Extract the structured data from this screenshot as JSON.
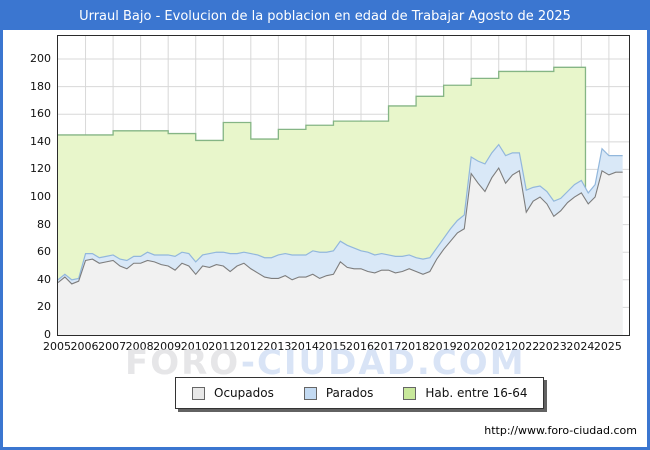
{
  "frame": {
    "title": "Urraul Bajo - Evolucion de la poblacion en edad de Trabajar Agosto de 2025",
    "title_bar_color": "#3b76d0",
    "border_color": "#3b76d0",
    "footer_url": "http://www.foro-ciudad.com",
    "watermark_part1": "FORO",
    "watermark_part2": "-CIUDAD.COM"
  },
  "legend": {
    "items": [
      {
        "label": "Ocupados",
        "swatch_color": "#e8e8e8"
      },
      {
        "label": "Parados",
        "swatch_color": "#c3daf2"
      },
      {
        "label": "Hab. entre 16-64",
        "swatch_color": "#c8e89b"
      }
    ]
  },
  "chart_data": {
    "type": "area",
    "title": "Urraul Bajo - Evolucion de la poblacion en edad de Trabajar Agosto de 2025",
    "xlabel": "",
    "ylabel": "",
    "grid": true,
    "legend_position": "bottom-center",
    "x_ticks": [
      2005,
      2006,
      2007,
      2008,
      2009,
      2010,
      2011,
      2012,
      2013,
      2014,
      2015,
      2016,
      2017,
      2018,
      2019,
      2020,
      2021,
      2022,
      2023,
      2024,
      2025
    ],
    "y_ticks": [
      0,
      20,
      40,
      60,
      80,
      100,
      120,
      140,
      160,
      180,
      200
    ],
    "x_range": [
      2005,
      2025.73
    ],
    "y_range": [
      0,
      216.7
    ],
    "stacking_note": "Parados is drawn stacked on top of Ocupados; Hab. entre 16-64 is a background area with annual step values ending early 2024",
    "series": [
      {
        "name": "Hab. entre 16-64",
        "style": "annual-steps",
        "line_color": "#85b585",
        "fill_color": "#e8f6cb",
        "years": [
          2005,
          2006,
          2007,
          2008,
          2009,
          2010,
          2011,
          2012,
          2013,
          2014,
          2015,
          2016,
          2017,
          2018,
          2019,
          2020,
          2021,
          2022,
          2023
        ],
        "values": [
          145,
          145,
          148,
          148,
          146,
          141,
          154,
          142,
          149,
          152,
          155,
          155,
          166,
          173,
          181,
          186,
          191,
          191,
          194
        ],
        "data_end_x": 2024.15
      },
      {
        "name": "Ocupados",
        "style": "quarterly",
        "line_color": "#7d7d7d",
        "fill_color": "#f1f1f1",
        "x_start": 2005.0,
        "x_step": 0.25,
        "values": [
          38,
          42,
          37,
          39,
          54,
          55,
          52,
          53,
          54,
          50,
          48,
          52,
          52,
          54,
          53,
          51,
          50,
          47,
          52,
          50,
          44,
          50,
          49,
          51,
          50,
          46,
          50,
          52,
          48,
          45,
          42,
          41,
          41,
          43,
          40,
          42,
          42,
          44,
          41,
          43,
          44,
          53,
          49,
          48,
          48,
          46,
          45,
          47,
          47,
          45,
          46,
          48,
          46,
          44,
          46,
          55,
          62,
          68,
          74,
          77,
          117,
          110,
          104,
          114,
          121,
          110,
          116,
          119,
          89,
          97,
          100,
          95,
          86,
          90,
          96,
          100,
          103,
          95,
          100,
          119,
          116,
          118,
          118
        ]
      },
      {
        "name": "Parados",
        "style": "quarterly-stacked-on-ocupados",
        "line_color": "#92b7dc",
        "fill_color": "#d9e8f7",
        "x_start": 2005.0,
        "x_step": 0.25,
        "values": [
          2,
          2,
          3,
          2,
          5,
          4,
          4,
          4,
          4,
          5,
          6,
          5,
          5,
          6,
          5,
          7,
          8,
          10,
          8,
          9,
          9,
          8,
          10,
          9,
          10,
          13,
          9,
          8,
          11,
          13,
          14,
          15,
          17,
          16,
          18,
          16,
          16,
          17,
          19,
          17,
          17,
          15,
          16,
          15,
          13,
          14,
          13,
          12,
          11,
          12,
          11,
          10,
          10,
          11,
          10,
          8,
          8,
          9,
          9,
          10,
          12,
          16,
          20,
          18,
          17,
          20,
          16,
          13,
          16,
          10,
          8,
          9,
          11,
          9,
          8,
          9,
          9,
          8,
          9,
          16,
          14,
          12,
          12
        ]
      }
    ]
  }
}
